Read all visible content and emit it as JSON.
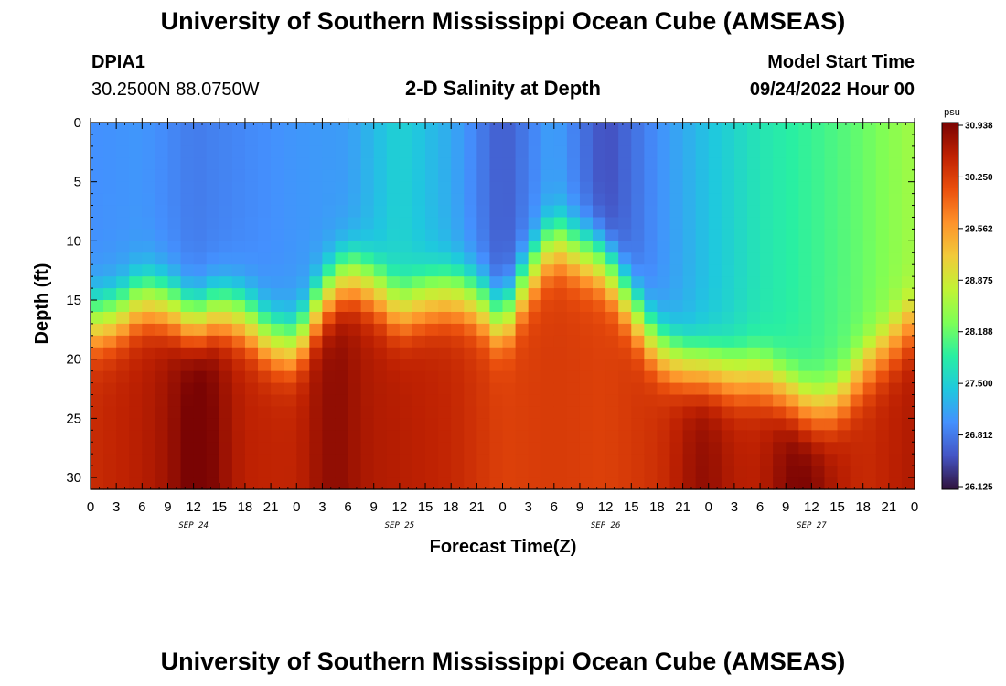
{
  "page": {
    "title": "University of Southern Mississippi Ocean Cube (AMSEAS)",
    "station_id": "DPIA1",
    "station_coords": "30.2500N  88.0750W",
    "model_start_label": "Model Start Time",
    "model_start_value": "09/24/2022 Hour 00",
    "footer_title": "University of Southern Mississippi Ocean Cube (AMSEAS)"
  },
  "chart_data": {
    "type": "heatmap",
    "title": "2-D Salinity at Depth",
    "xlabel": "Forecast Time(Z)",
    "ylabel": "Depth (ft)",
    "units": "psu",
    "x_range_hours": [
      0,
      96
    ],
    "x_tick_step_hours": 3,
    "x_tick_labels": [
      "0",
      "3",
      "6",
      "9",
      "12",
      "15",
      "18",
      "21",
      "0",
      "3",
      "6",
      "9",
      "12",
      "15",
      "18",
      "21",
      "0",
      "3",
      "6",
      "9",
      "12",
      "15",
      "18",
      "21",
      "0",
      "3",
      "6",
      "9",
      "12",
      "15",
      "18",
      "21",
      "0"
    ],
    "day_labels": [
      {
        "label": "SEP 24",
        "hour": 12
      },
      {
        "label": "SEP 25",
        "hour": 36
      },
      {
        "label": "SEP 26",
        "hour": 60
      },
      {
        "label": "SEP 27",
        "hour": 84
      }
    ],
    "y_range_ft": [
      0,
      31
    ],
    "y_ticks": [
      0,
      5,
      10,
      15,
      20,
      25,
      30
    ],
    "colorbar": {
      "min": 26.125,
      "max": 30.938,
      "labels": [
        "30.938",
        "30.250",
        "29.562",
        "28.875",
        "28.188",
        "27.500",
        "26.812",
        "26.125"
      ],
      "colors": [
        "#30123b",
        "#4454c4",
        "#4490fe",
        "#1fc8de",
        "#29efa2",
        "#7dff56",
        "#c1f334",
        "#f1ca3a",
        "#fe922a",
        "#ea4f0d",
        "#be2102",
        "#7a0403"
      ]
    },
    "halocline_depth_ft": {
      "hours": [
        0,
        3,
        6,
        9,
        12,
        15,
        18,
        21,
        24,
        27,
        30,
        33,
        36,
        39,
        42,
        45,
        48,
        51,
        54,
        57,
        60,
        63,
        66,
        69,
        72,
        75,
        78,
        81,
        84,
        87,
        90,
        93,
        96
      ],
      "values": [
        17,
        16.5,
        15,
        15.5,
        17,
        16,
        16.5,
        18.5,
        19,
        15,
        13,
        14,
        16,
        15,
        14.5,
        15,
        17,
        13,
        10,
        11,
        12,
        15.5,
        19,
        20.5,
        21,
        21.5,
        21.5,
        23,
        24.5,
        24,
        21,
        19,
        17
      ]
    },
    "surface_salinity_psu": {
      "hours": [
        0,
        6,
        12,
        18,
        24,
        30,
        36,
        42,
        48,
        54,
        60,
        66,
        72,
        78,
        84,
        90,
        96
      ],
      "values": [
        27.0,
        27.05,
        26.85,
        26.95,
        27.05,
        27.1,
        27.55,
        27.2,
        26.6,
        27.15,
        26.5,
        27.0,
        27.4,
        27.75,
        27.95,
        28.2,
        28.55
      ]
    },
    "bottom_salinity_psu": {
      "hours": [
        0,
        6,
        12,
        18,
        24,
        30,
        36,
        42,
        48,
        54,
        60,
        66,
        72,
        78,
        84,
        90,
        96
      ],
      "values": [
        30.4,
        30.55,
        30.8,
        30.5,
        30.45,
        30.6,
        30.55,
        30.45,
        30.2,
        30.25,
        30.2,
        30.35,
        30.55,
        30.5,
        30.75,
        30.4,
        30.6
      ]
    },
    "bottom_max_hours": [
      13,
      28,
      71,
      82
    ]
  }
}
